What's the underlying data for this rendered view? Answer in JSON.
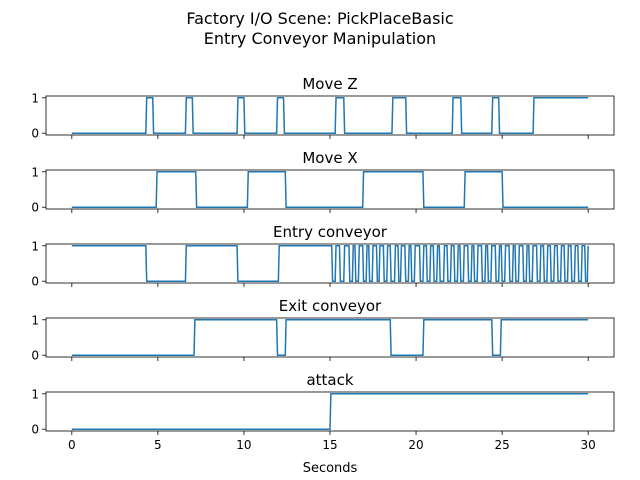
{
  "figure": {
    "title_line1": "Factory I/O Scene: PickPlaceBasic",
    "title_line2": "Entry Conveyor Manipulation",
    "xlabel": "Seconds"
  },
  "colors": {
    "line": "#1f77b4",
    "axes": "#000000",
    "background": "#ffffff"
  },
  "chart_data": {
    "type": "line",
    "x_range": [
      -1.5,
      31.5
    ],
    "x_ticks": [
      0,
      5,
      10,
      15,
      20,
      25,
      30
    ],
    "y_range": [
      -0.05,
      1.05
    ],
    "y_ticks": [
      0,
      1
    ],
    "grid": false,
    "legend": "none",
    "shared_x": true,
    "series": [
      {
        "name": "Move Z",
        "points": [
          [
            0,
            0
          ],
          [
            4.3,
            0
          ],
          [
            4.35,
            1
          ],
          [
            4.7,
            1
          ],
          [
            4.75,
            0
          ],
          [
            6.6,
            0
          ],
          [
            6.65,
            1
          ],
          [
            7.0,
            1
          ],
          [
            7.05,
            0
          ],
          [
            9.6,
            0
          ],
          [
            9.65,
            1
          ],
          [
            10.0,
            1
          ],
          [
            10.05,
            0
          ],
          [
            11.9,
            0
          ],
          [
            11.95,
            1
          ],
          [
            12.3,
            1
          ],
          [
            12.35,
            0
          ],
          [
            15.3,
            0
          ],
          [
            15.35,
            1
          ],
          [
            15.8,
            1
          ],
          [
            15.85,
            0
          ],
          [
            18.6,
            0
          ],
          [
            18.65,
            1
          ],
          [
            19.4,
            1
          ],
          [
            19.45,
            0
          ],
          [
            22.1,
            0
          ],
          [
            22.15,
            1
          ],
          [
            22.6,
            1
          ],
          [
            22.65,
            0
          ],
          [
            24.4,
            0
          ],
          [
            24.45,
            1
          ],
          [
            24.8,
            1
          ],
          [
            24.85,
            0
          ],
          [
            26.8,
            0
          ],
          [
            26.85,
            1
          ],
          [
            30,
            1
          ]
        ]
      },
      {
        "name": "Move X",
        "points": [
          [
            0,
            0
          ],
          [
            4.9,
            0
          ],
          [
            4.95,
            1
          ],
          [
            7.2,
            1
          ],
          [
            7.25,
            0
          ],
          [
            10.2,
            0
          ],
          [
            10.25,
            1
          ],
          [
            12.4,
            1
          ],
          [
            12.45,
            0
          ],
          [
            16.9,
            0
          ],
          [
            16.95,
            1
          ],
          [
            20.4,
            1
          ],
          [
            20.45,
            0
          ],
          [
            22.8,
            0
          ],
          [
            22.85,
            1
          ],
          [
            25.0,
            1
          ],
          [
            25.05,
            0
          ],
          [
            30,
            0
          ]
        ]
      },
      {
        "name": "Entry conveyor",
        "points": [
          [
            0,
            1
          ],
          [
            4.3,
            1
          ],
          [
            4.35,
            0
          ],
          [
            6.6,
            0
          ],
          [
            6.65,
            1
          ],
          [
            9.6,
            1
          ],
          [
            9.65,
            0
          ],
          [
            12.0,
            0
          ],
          [
            12.05,
            1
          ],
          [
            15.1,
            1
          ],
          [
            15.15,
            0
          ],
          [
            15.3,
            0
          ],
          [
            15.35,
            1
          ],
          [
            15.55,
            1
          ],
          [
            15.6,
            0
          ],
          [
            15.8,
            0
          ],
          [
            15.85,
            1
          ],
          [
            16.1,
            1
          ],
          [
            16.15,
            0
          ],
          [
            16.3,
            0
          ],
          [
            16.35,
            1
          ],
          [
            16.45,
            1
          ],
          [
            16.5,
            0
          ],
          [
            16.65,
            0
          ],
          [
            16.7,
            1
          ],
          [
            16.9,
            1
          ],
          [
            16.95,
            0
          ],
          [
            17.1,
            0
          ],
          [
            17.15,
            1
          ],
          [
            17.25,
            1
          ],
          [
            17.3,
            0
          ],
          [
            17.45,
            0
          ],
          [
            17.5,
            1
          ],
          [
            17.7,
            1
          ],
          [
            17.75,
            0
          ],
          [
            17.85,
            0
          ],
          [
            17.9,
            1
          ],
          [
            18.1,
            1
          ],
          [
            18.15,
            0
          ],
          [
            18.3,
            0
          ],
          [
            18.35,
            1
          ],
          [
            18.5,
            1
          ],
          [
            18.55,
            0
          ],
          [
            18.75,
            0
          ],
          [
            18.8,
            1
          ],
          [
            18.95,
            1
          ],
          [
            19.0,
            0
          ],
          [
            19.1,
            0
          ],
          [
            19.15,
            1
          ],
          [
            19.35,
            1
          ],
          [
            19.4,
            0
          ],
          [
            19.55,
            0
          ],
          [
            19.6,
            1
          ],
          [
            19.7,
            1
          ],
          [
            19.75,
            0
          ],
          [
            19.9,
            0
          ],
          [
            19.95,
            1
          ],
          [
            20.2,
            1
          ],
          [
            20.25,
            0
          ],
          [
            20.4,
            0
          ],
          [
            20.45,
            1
          ],
          [
            20.6,
            1
          ],
          [
            20.65,
            0
          ],
          [
            20.8,
            0
          ],
          [
            20.85,
            1
          ],
          [
            21.0,
            1
          ],
          [
            21.05,
            0
          ],
          [
            21.2,
            0
          ],
          [
            21.25,
            1
          ],
          [
            21.35,
            1
          ],
          [
            21.4,
            0
          ],
          [
            21.6,
            0
          ],
          [
            21.65,
            1
          ],
          [
            21.8,
            1
          ],
          [
            21.85,
            0
          ],
          [
            22.0,
            0
          ],
          [
            22.05,
            1
          ],
          [
            22.2,
            1
          ],
          [
            22.25,
            0
          ],
          [
            22.4,
            0
          ],
          [
            22.45,
            1
          ],
          [
            22.55,
            1
          ],
          [
            22.6,
            0
          ],
          [
            22.75,
            0
          ],
          [
            22.8,
            1
          ],
          [
            23.0,
            1
          ],
          [
            23.05,
            0
          ],
          [
            23.2,
            0
          ],
          [
            23.25,
            1
          ],
          [
            23.35,
            1
          ],
          [
            23.4,
            0
          ],
          [
            23.55,
            0
          ],
          [
            23.6,
            1
          ],
          [
            23.8,
            1
          ],
          [
            23.85,
            0
          ],
          [
            24.0,
            0
          ],
          [
            24.05,
            1
          ],
          [
            24.15,
            1
          ],
          [
            24.2,
            0
          ],
          [
            24.35,
            0
          ],
          [
            24.4,
            1
          ],
          [
            24.6,
            1
          ],
          [
            24.65,
            0
          ],
          [
            24.8,
            0
          ],
          [
            24.85,
            1
          ],
          [
            24.95,
            1
          ],
          [
            25.0,
            0
          ],
          [
            25.15,
            0
          ],
          [
            25.2,
            1
          ],
          [
            25.4,
            1
          ],
          [
            25.45,
            0
          ],
          [
            25.6,
            0
          ],
          [
            25.65,
            1
          ],
          [
            25.75,
            1
          ],
          [
            25.8,
            0
          ],
          [
            25.95,
            0
          ],
          [
            26.0,
            1
          ],
          [
            26.2,
            1
          ],
          [
            26.25,
            0
          ],
          [
            26.4,
            0
          ],
          [
            26.45,
            1
          ],
          [
            26.55,
            1
          ],
          [
            26.6,
            0
          ],
          [
            26.75,
            0
          ],
          [
            26.8,
            1
          ],
          [
            27.0,
            1
          ],
          [
            27.05,
            0
          ],
          [
            27.2,
            0
          ],
          [
            27.25,
            1
          ],
          [
            27.4,
            1
          ],
          [
            27.45,
            0
          ],
          [
            27.6,
            0
          ],
          [
            27.65,
            1
          ],
          [
            27.8,
            1
          ],
          [
            27.85,
            0
          ],
          [
            28.0,
            0
          ],
          [
            28.05,
            1
          ],
          [
            28.2,
            1
          ],
          [
            28.25,
            0
          ],
          [
            28.4,
            0
          ],
          [
            28.45,
            1
          ],
          [
            28.6,
            1
          ],
          [
            28.65,
            0
          ],
          [
            28.8,
            0
          ],
          [
            28.85,
            1
          ],
          [
            29.0,
            1
          ],
          [
            29.05,
            0
          ],
          [
            29.2,
            0
          ],
          [
            29.25,
            1
          ],
          [
            29.4,
            1
          ],
          [
            29.45,
            0
          ],
          [
            29.6,
            0
          ],
          [
            29.65,
            1
          ],
          [
            29.8,
            1
          ],
          [
            29.85,
            0
          ],
          [
            29.95,
            0
          ],
          [
            30,
            1
          ]
        ]
      },
      {
        "name": "Exit conveyor",
        "points": [
          [
            0,
            0
          ],
          [
            7.1,
            0
          ],
          [
            7.15,
            1
          ],
          [
            11.9,
            1
          ],
          [
            11.95,
            0
          ],
          [
            12.4,
            0
          ],
          [
            12.45,
            1
          ],
          [
            18.5,
            1
          ],
          [
            18.55,
            0
          ],
          [
            20.4,
            0
          ],
          [
            20.45,
            1
          ],
          [
            24.4,
            1
          ],
          [
            24.45,
            0
          ],
          [
            24.9,
            0
          ],
          [
            24.95,
            1
          ],
          [
            30,
            1
          ]
        ]
      },
      {
        "name": "attack",
        "points": [
          [
            0,
            0
          ],
          [
            15.0,
            0
          ],
          [
            15.05,
            1
          ],
          [
            30,
            1
          ]
        ]
      }
    ]
  }
}
